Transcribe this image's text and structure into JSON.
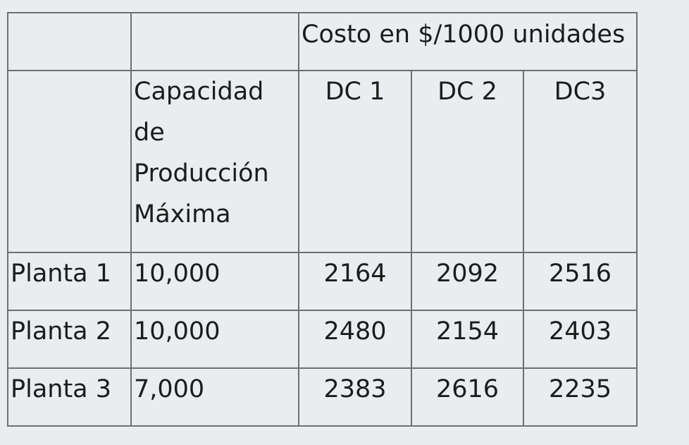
{
  "table": {
    "header_group": "Costo en $/1000 unidades",
    "capacity_header": "Capacidad de Producción Máxima",
    "dc_headers": [
      "DC 1",
      "DC 2",
      "DC3"
    ],
    "rows": [
      {
        "plant": "Planta 1",
        "capacity": "10,000",
        "costs": [
          "2164",
          "2092",
          "2516"
        ]
      },
      {
        "plant": "Planta 2",
        "capacity": "10,000",
        "costs": [
          "2480",
          "2154",
          "2403"
        ]
      },
      {
        "plant": "Planta 3",
        "capacity": "7,000",
        "costs": [
          "2383",
          "2616",
          "2235"
        ]
      }
    ]
  }
}
